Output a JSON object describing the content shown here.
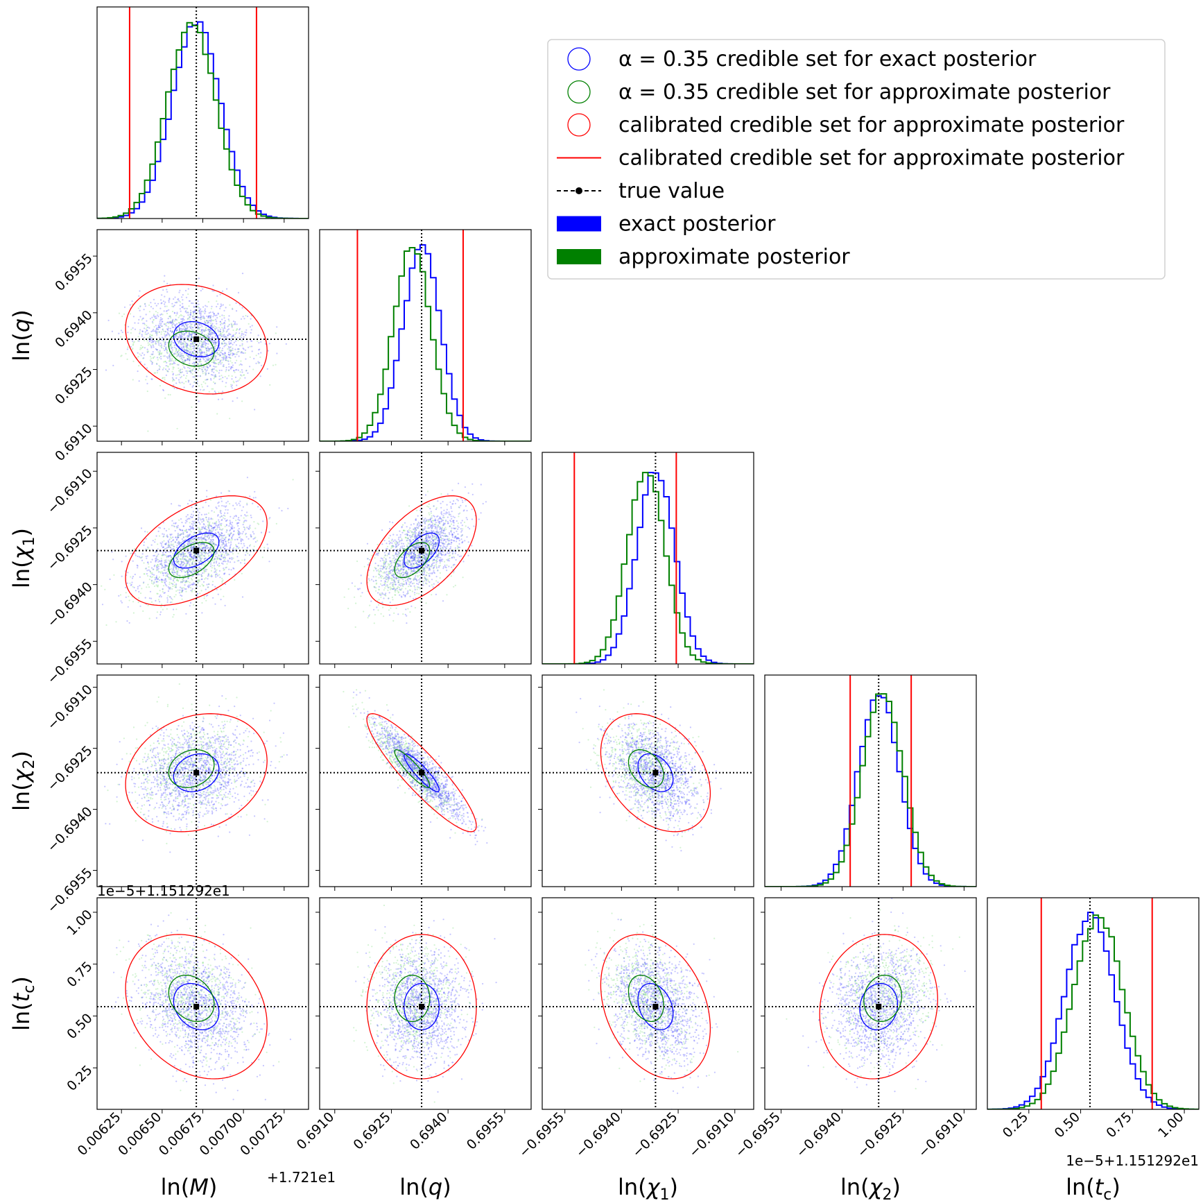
{
  "chart_data": {
    "type": "corner",
    "parameters": [
      {
        "key": "lnM",
        "label": "ln(M)",
        "math": "M",
        "offset_text": "+1.721e1",
        "range": [
          0.0061,
          0.0074
        ],
        "ticks": [
          0.00625,
          0.0065,
          0.00675,
          0.007,
          0.00725
        ],
        "tick_labels": [
          "0.00625",
          "0.00650",
          "0.00675",
          "0.00700",
          "0.00725"
        ],
        "truth": 0.00671,
        "sigma": 0.00015
      },
      {
        "key": "lnq",
        "label": "ln(q)",
        "math": "q",
        "offset_text": "",
        "range": [
          0.6906,
          0.6962
        ],
        "ticks": [
          0.691,
          0.6925,
          0.694,
          0.6955
        ],
        "tick_labels": [
          "0.6910",
          "0.6925",
          "0.6940",
          "0.6955"
        ],
        "truth": 0.6933,
        "sigma": 0.0005
      },
      {
        "key": "lnchi1",
        "label": "ln(χ1)",
        "math": "χ",
        "sub": "1",
        "offset_text": "",
        "range": [
          -0.6961,
          -0.6905
        ],
        "ticks": [
          -0.6955,
          -0.694,
          -0.6925,
          -0.691
        ],
        "tick_labels": [
          "−0.6955",
          "−0.6940",
          "−0.6925",
          "−0.6910"
        ],
        "truth": -0.6931,
        "sigma": 0.0005
      },
      {
        "key": "lnchi2",
        "label": "ln(χ2)",
        "math": "χ",
        "sub": "2",
        "offset_text": "",
        "range": [
          -0.6959,
          -0.6907
        ],
        "ticks": [
          -0.6955,
          -0.694,
          -0.6925,
          -0.691
        ],
        "tick_labels": [
          "−0.6955",
          "−0.6940",
          "−0.6925",
          "−0.6910"
        ],
        "truth": -0.6931,
        "sigma": 0.0005
      },
      {
        "key": "lntc",
        "label": "ln(t_c)",
        "math": "t",
        "sub": "c",
        "offset_text": "1e−5+1.151292e1",
        "range": [
          0.05,
          1.07
        ],
        "ticks": [
          0.25,
          0.5,
          0.75,
          1.0
        ],
        "tick_labels": [
          "0.25",
          "0.50",
          "0.75",
          "1.00"
        ],
        "truth": 0.545,
        "sigma": 0.12
      }
    ],
    "series": [
      {
        "name": "α = 0.35 credible set for exact posterior",
        "color": "#0000ff",
        "marker": "open-circle"
      },
      {
        "name": "α = 0.35 credible set for approximate posterior",
        "color": "#008000",
        "marker": "open-circle"
      },
      {
        "name": "calibrated credible set for approximate posterior",
        "color": "#ff0000",
        "marker": "open-circle"
      },
      {
        "name": "calibrated credible set for approximate posterior",
        "color": "#ff0000",
        "marker": "line"
      },
      {
        "name": "true value",
        "color": "#000000",
        "marker": "dashed-line-dot"
      },
      {
        "name": "exact posterior",
        "color": "#0000ff",
        "marker": "filled-rect"
      },
      {
        "name": "approximate posterior",
        "color": "#008000",
        "marker": "filled-rect"
      }
    ],
    "approx_shift": {
      "lnM": -3e-05,
      "lnq": -0.00025,
      "lnchi1": -0.00025,
      "lnchi2": 0.0001,
      "lntc": 0.04
    },
    "calibrated_1d": {
      "lnM": [
        0.0063,
        0.00708
      ],
      "lnq": [
        0.6916,
        0.6944
      ],
      "lnchi1": [
        -0.69525,
        -0.69255
      ],
      "lnchi2": [
        -0.6938,
        -0.6923
      ],
      "lntc": [
        0.31,
        0.845
      ]
    },
    "correlations": {
      "q-M": -0.2,
      "chi1-M": 0.5,
      "chi1-q": 0.55,
      "chi2-M": 0.2,
      "chi2-q": -0.9,
      "chi2-chi1": -0.35,
      "tc-M": -0.25,
      "tc-q": 0.0,
      "tc-chi1": -0.3,
      "tc-chi2": 0.1
    },
    "scale": {
      "exact_sigma_factor": 1.0,
      "approx_sigma_factor": 1.0,
      "credible_radius": 0.93,
      "calibrated_radius": 2.9
    },
    "legend_position": "top-right"
  }
}
